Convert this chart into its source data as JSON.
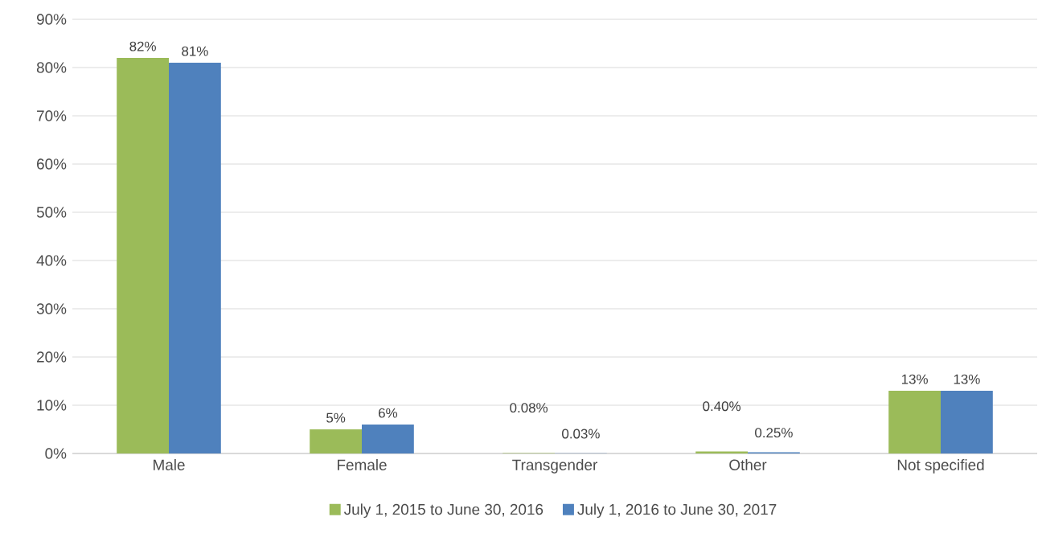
{
  "chart_data": {
    "type": "bar",
    "categories": [
      "Male",
      "Female",
      "Transgender",
      "Other",
      "Not specified"
    ],
    "series": [
      {
        "name": "July 1, 2015 to June 30, 2016",
        "color": "#9bbb59",
        "values": [
          82,
          5,
          0.08,
          0.4,
          13
        ],
        "value_labels": [
          "82%",
          "5%",
          "0.08%",
          "0.40%",
          "13%"
        ]
      },
      {
        "name": "July 1, 2016 to June 30, 2017",
        "color": "#4f81bd",
        "values": [
          81,
          6,
          0.03,
          0.25,
          13
        ],
        "value_labels": [
          "81%",
          "6%",
          "0.03%",
          "0.25%",
          "13%"
        ]
      }
    ],
    "ylim": [
      0,
      90
    ],
    "yticks": [
      {
        "value": 0,
        "label": "0%"
      },
      {
        "value": 10,
        "label": "10%"
      },
      {
        "value": 20,
        "label": "20%"
      },
      {
        "value": 30,
        "label": "30%"
      },
      {
        "value": 40,
        "label": "40%"
      },
      {
        "value": 50,
        "label": "50%"
      },
      {
        "value": 60,
        "label": "60%"
      },
      {
        "value": 70,
        "label": "70%"
      },
      {
        "value": 80,
        "label": "80%"
      },
      {
        "value": 90,
        "label": "90%"
      }
    ],
    "grid": "y",
    "legend": "bottom"
  }
}
